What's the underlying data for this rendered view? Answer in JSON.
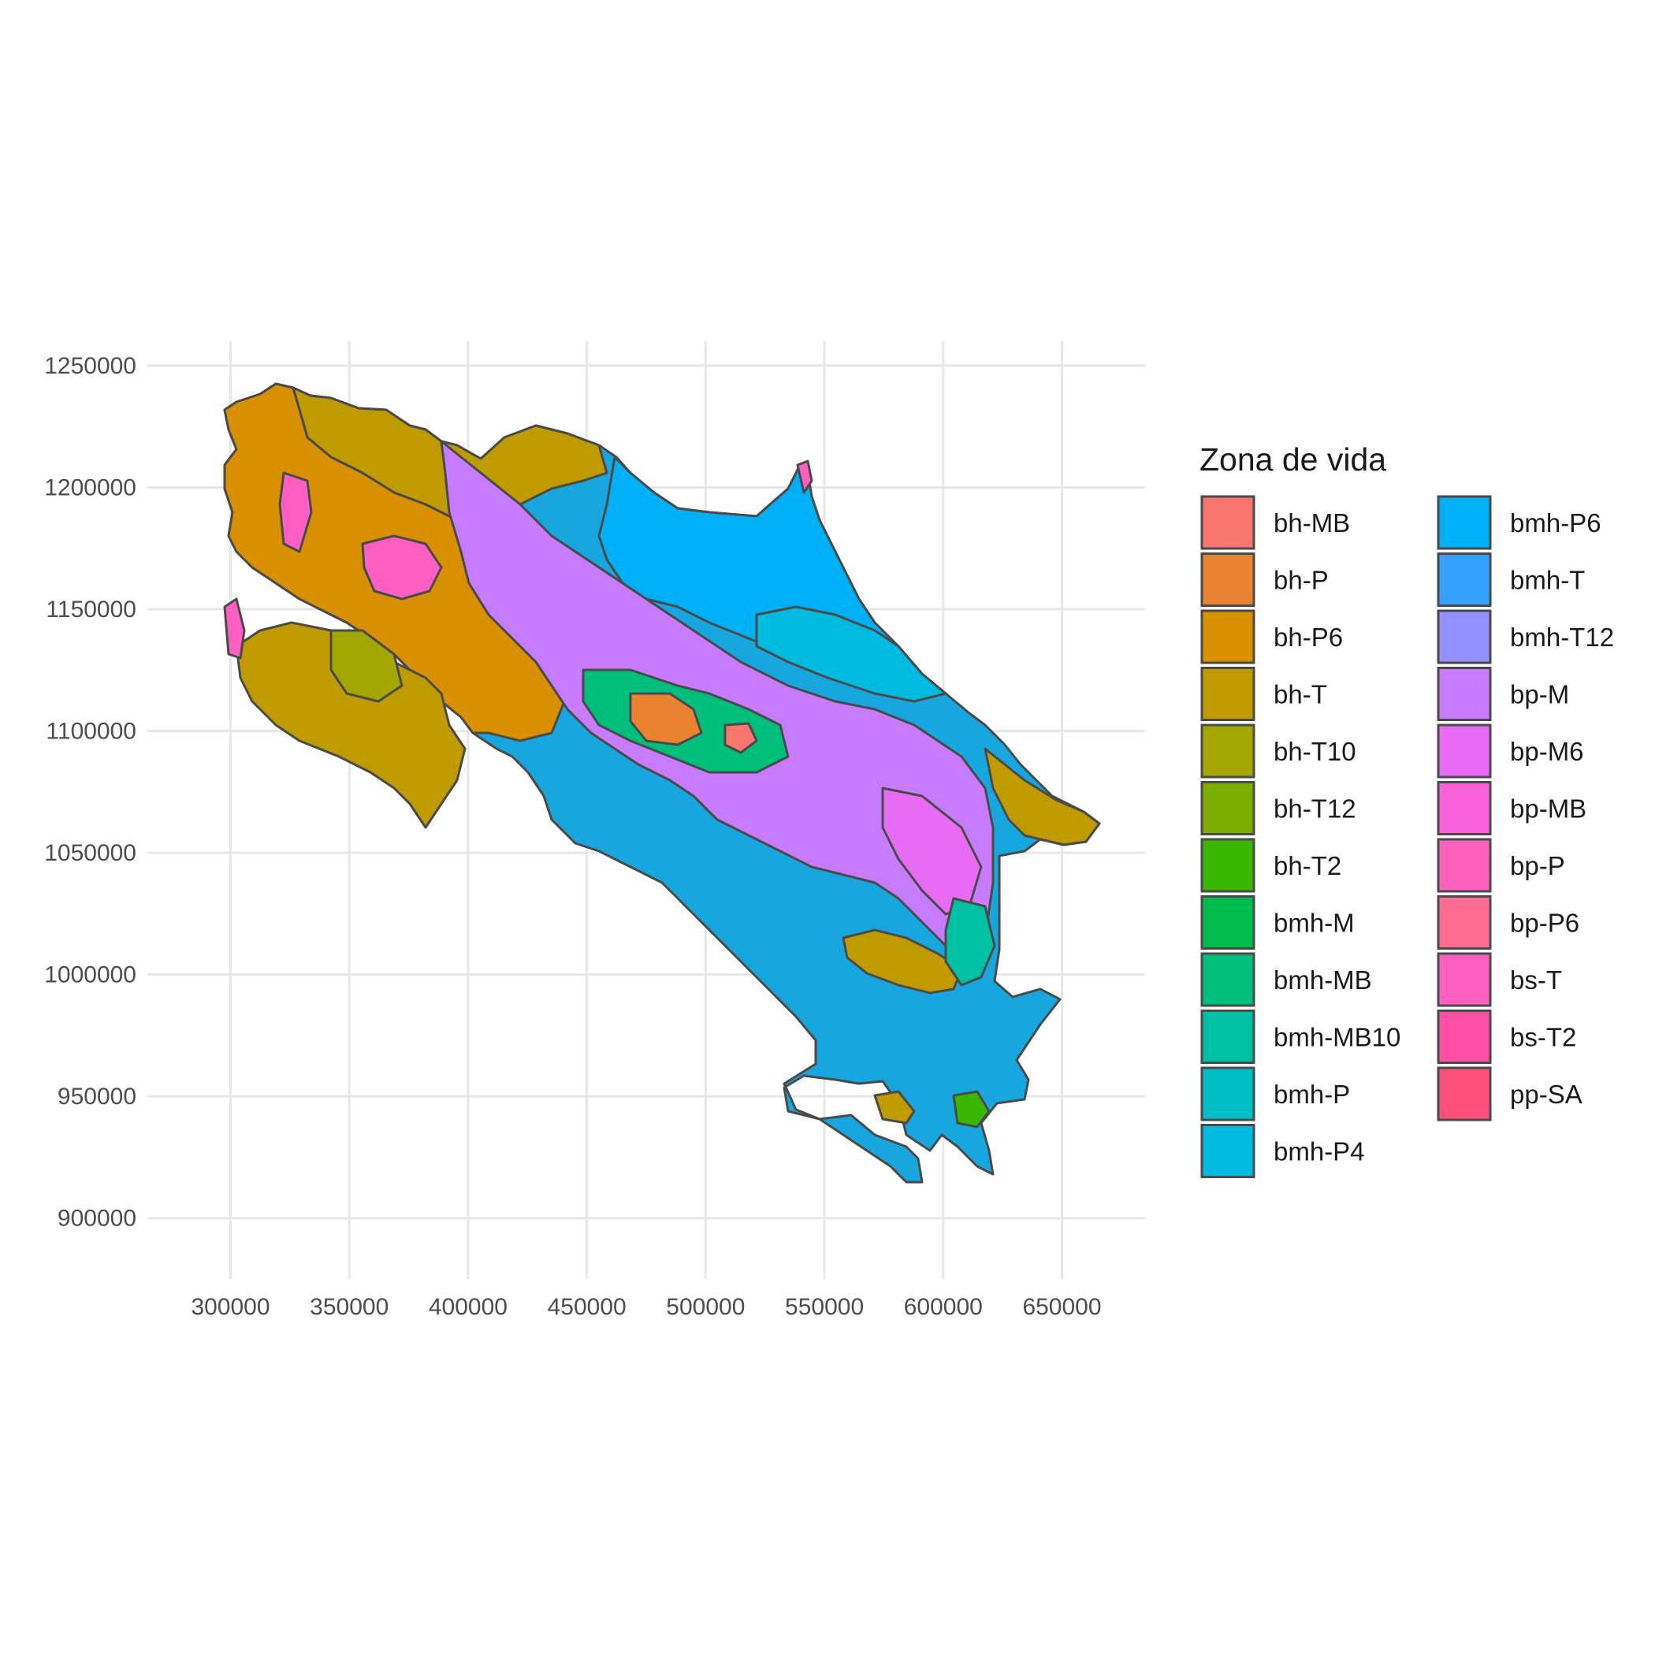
{
  "chart_data": {
    "type": "map",
    "title": "",
    "xlabel": "",
    "ylabel": "",
    "xlim": [
      265000,
      685000
    ],
    "ylim": [
      875000,
      1260000
    ],
    "x_ticks": [
      300000,
      350000,
      400000,
      450000,
      500000,
      550000,
      600000,
      650000
    ],
    "y_ticks": [
      900000,
      950000,
      1000000,
      1050000,
      1100000,
      1150000,
      1200000,
      1250000
    ],
    "x_tick_labels": [
      "300000",
      "350000",
      "400000",
      "450000",
      "500000",
      "550000",
      "600000",
      "650000"
    ],
    "y_tick_labels": [
      "900000",
      "950000",
      "1000000",
      "1050000",
      "1100000",
      "1150000",
      "1200000",
      "1250000"
    ],
    "grid": true,
    "legend": {
      "title": "Zona de vida",
      "placement": "right",
      "columns": 2,
      "entries": [
        {
          "label": "bh-MB",
          "color": "#F8766D"
        },
        {
          "label": "bh-P",
          "color": "#EA8331"
        },
        {
          "label": "bh-P6",
          "color": "#D89000"
        },
        {
          "label": "bh-T",
          "color": "#C09B00"
        },
        {
          "label": "bh-T10",
          "color": "#A3A500"
        },
        {
          "label": "bh-T12",
          "color": "#7CAE00"
        },
        {
          "label": "bh-T2",
          "color": "#39B600"
        },
        {
          "label": "bmh-M",
          "color": "#00BB4E"
        },
        {
          "label": "bmh-MB",
          "color": "#00BF7D"
        },
        {
          "label": "bmh-MB10",
          "color": "#00C1A3"
        },
        {
          "label": "bmh-P",
          "color": "#00BFC4"
        },
        {
          "label": "bmh-P4",
          "color": "#00BAE0"
        },
        {
          "label": "bmh-P6",
          "color": "#00B0F6"
        },
        {
          "label": "bmh-T",
          "color": "#35A2FF"
        },
        {
          "label": "bmh-T12",
          "color": "#9590FF"
        },
        {
          "label": "bp-M",
          "color": "#C77CFF"
        },
        {
          "label": "bp-M6",
          "color": "#E76BF3"
        },
        {
          "label": "bp-MB",
          "color": "#FA62DB"
        },
        {
          "label": "bp-P",
          "color": "#FF62BC"
        },
        {
          "label": "bp-P6",
          "color": "#FF6C91"
        },
        {
          "label": "bs-T",
          "color": "#FF5FC1"
        },
        {
          "label": "bs-T2",
          "color": "#FF4FA6"
        },
        {
          "label": "pp-SA",
          "color": "#FF4F7B"
        }
      ]
    }
  }
}
